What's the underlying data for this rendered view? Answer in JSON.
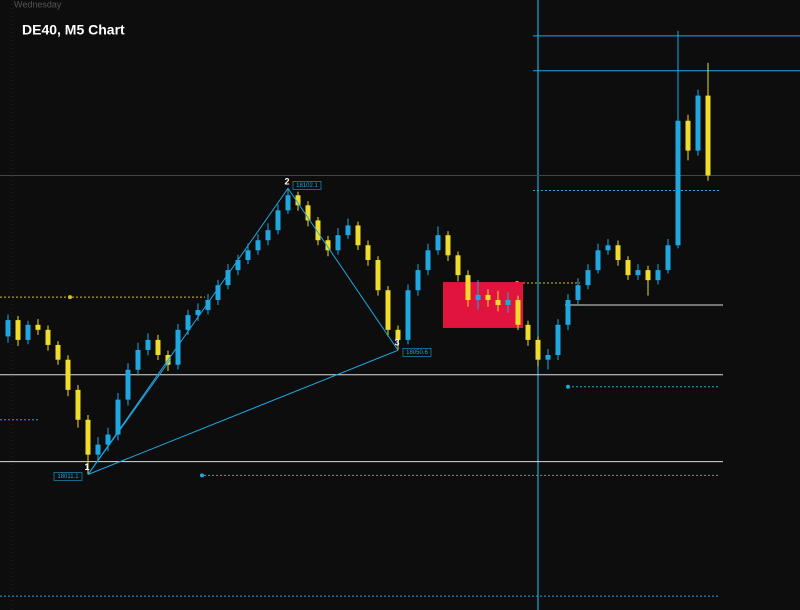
{
  "chart_data": {
    "type": "candlestick",
    "title": "DE40, M5 Chart",
    "day_label": "Wednesday",
    "up_color": "#1ea7e1",
    "down_color": "#f0dc2c",
    "ylim": [
      17968,
      18162
    ],
    "open": [
      18055.0,
      18060.2,
      18053.9,
      18058.7,
      18057.1,
      18052.3,
      18047.6,
      18038.0,
      18028.5,
      18017.4,
      18020.6,
      18023.8,
      18034.9,
      18044.4,
      18050.7,
      18053.9,
      18049.1,
      18046.0,
      18057.1,
      18061.8,
      18063.4,
      18066.6,
      18071.3,
      18076.1,
      18079.3,
      18082.4,
      18085.6,
      18088.8,
      18095.1,
      18099.9,
      18096.7,
      18091.9,
      18085.6,
      18082.4,
      18087.2,
      18090.3,
      18084.0,
      18079.3,
      18069.7,
      18057.1,
      18053.9,
      18069.7,
      18076.1,
      18082.4,
      18087.2,
      18080.8,
      18074.5,
      18066.6,
      18068.2,
      18066.6,
      18065.0,
      18066.6,
      18058.7,
      18053.9,
      18047.6,
      18049.1,
      18058.7,
      18066.6,
      18071.3,
      18076.1,
      18082.4,
      18084.0,
      18079.3,
      18074.5,
      18076.1,
      18072.9,
      18076.1,
      18084.0,
      18123.6,
      18114.1,
      18131.6
    ],
    "high": [
      18062.0,
      18061.5,
      18060.0,
      18060.5,
      18058.5,
      18053.5,
      18049.0,
      18039.5,
      18030.0,
      18023.0,
      18026.0,
      18037.0,
      18046.5,
      18053.0,
      18056.0,
      18055.5,
      18050.5,
      18059.0,
      18063.5,
      18065.5,
      18068.5,
      18073.0,
      18078.0,
      18081.0,
      18084.5,
      18087.5,
      18091.0,
      18097.0,
      18102.1,
      18101.0,
      18098.0,
      18093.0,
      18087.0,
      18089.5,
      18092.5,
      18091.5,
      18085.5,
      18080.5,
      18071.0,
      18058.5,
      18071.5,
      18078.0,
      18084.5,
      18090.0,
      18088.5,
      18082.0,
      18076.0,
      18073.0,
      18070.0,
      18069.5,
      18069.0,
      18068.0,
      18060.0,
      18055.0,
      18051.0,
      18060.5,
      18068.5,
      18073.5,
      18078.0,
      18084.5,
      18086.0,
      18085.5,
      18080.5,
      18078.0,
      18077.5,
      18078.0,
      18086.0,
      18152.2,
      18125.5,
      18133.5,
      18142.0
    ],
    "low": [
      18053.0,
      18052.0,
      18052.5,
      18055.5,
      18050.5,
      18046.0,
      18036.0,
      18026.0,
      18011.1,
      18015.0,
      18018.5,
      18022.0,
      18033.0,
      18042.5,
      18049.0,
      18047.5,
      18044.0,
      18044.5,
      18055.5,
      18060.0,
      18062.0,
      18065.0,
      18070.0,
      18074.5,
      18078.0,
      18081.0,
      18084.0,
      18087.5,
      18094.0,
      18095.0,
      18090.0,
      18084.0,
      18080.5,
      18081.0,
      18086.0,
      18082.5,
      18077.5,
      18068.0,
      18055.0,
      18050.6,
      18052.5,
      18068.0,
      18074.5,
      18081.0,
      18079.0,
      18072.5,
      18064.5,
      18063.5,
      18064.5,
      18063.0,
      18062.5,
      18057.0,
      18052.0,
      18045.5,
      18044.5,
      18047.5,
      18057.0,
      18065.0,
      18070.0,
      18075.0,
      18081.0,
      18077.5,
      18073.0,
      18073.0,
      18068.0,
      18071.5,
      18075.0,
      18083.0,
      18111.0,
      18112.5,
      18104.5
    ],
    "close": [
      18060.2,
      18053.9,
      18058.7,
      18057.1,
      18052.3,
      18047.6,
      18038.0,
      18028.5,
      18017.4,
      18020.6,
      18023.8,
      18034.9,
      18044.4,
      18050.7,
      18053.9,
      18049.1,
      18046.0,
      18057.1,
      18061.8,
      18063.4,
      18066.6,
      18071.3,
      18076.1,
      18079.3,
      18082.4,
      18085.6,
      18088.8,
      18095.1,
      18099.9,
      18096.7,
      18091.9,
      18085.6,
      18082.4,
      18087.2,
      18090.3,
      18084.0,
      18079.3,
      18069.7,
      18057.1,
      18053.9,
      18069.7,
      18076.1,
      18082.4,
      18087.2,
      18080.8,
      18074.5,
      18066.6,
      18068.2,
      18066.6,
      18065.0,
      18066.6,
      18058.7,
      18053.9,
      18047.6,
      18049.1,
      18058.7,
      18066.6,
      18071.3,
      18076.1,
      18082.4,
      18084.0,
      18079.3,
      18074.5,
      18076.1,
      18072.9,
      18076.1,
      18084.0,
      18123.6,
      18114.1,
      18131.6,
      18106.2
    ],
    "pivots": [
      {
        "label": "1",
        "price_label": "18011.1",
        "value": 18011.1
      },
      {
        "label": "2",
        "price_label": "18102.1",
        "value": 18102.1
      },
      {
        "label": "3",
        "price_label": "18050.6",
        "value": 18050.6
      }
    ],
    "levels": [
      18150.6,
      18139.5,
      18106.2,
      18101.4,
      18072.0,
      18067.5,
      18065.0,
      18042.8,
      18039.0,
      18028.5,
      18015.2,
      18010.8,
      17972.4
    ],
    "zone": [
      18057.7,
      18072.3
    ]
  }
}
